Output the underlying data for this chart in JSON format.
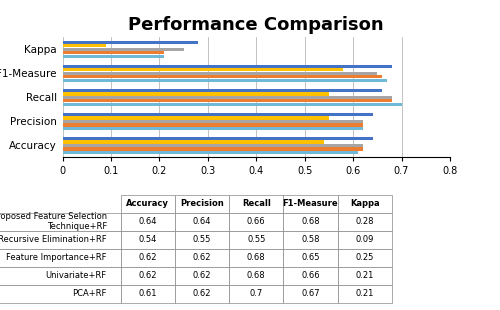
{
  "title": "Performance Comparison",
  "metrics": [
    "Accuracy",
    "Precision",
    "Recall",
    "F1-Measure",
    "Kappa"
  ],
  "methods": [
    "Proposed Feature Selection Technique+RF",
    "Recursive Elimination+RF",
    "Feature Importance+RF",
    "Univariate+RF",
    "PCA+RF"
  ],
  "colors": [
    "#4472C4",
    "#FFC000",
    "#A5A5A5",
    "#ED7D31",
    "#70B8D8"
  ],
  "data": [
    [
      0.64,
      0.64,
      0.66,
      0.68,
      0.28
    ],
    [
      0.54,
      0.55,
      0.55,
      0.58,
      0.09
    ],
    [
      0.62,
      0.62,
      0.68,
      0.65,
      0.25
    ],
    [
      0.62,
      0.62,
      0.68,
      0.66,
      0.21
    ],
    [
      0.61,
      0.62,
      0.7,
      0.67,
      0.21
    ]
  ],
  "xlim": [
    0,
    0.8
  ],
  "xticks": [
    0,
    0.1,
    0.2,
    0.3,
    0.4,
    0.5,
    0.6,
    0.7,
    0.8
  ],
  "bar_height": 0.14,
  "title_fontsize": 13,
  "table_col_labels": [
    "Accuracy",
    "Precision",
    "Recall",
    "F1-Measure",
    "Kappa"
  ],
  "table_row_labels": [
    "Proposed Feature Selection\nTechnique+RF",
    "Recursive Elimination+RF",
    "Feature Importance+RF",
    "Univariate+RF",
    "PCA+RF"
  ],
  "table_data": [
    [
      "0.64",
      "0.64",
      "0.66",
      "0.68",
      "0.28"
    ],
    [
      "0.54",
      "0.55",
      "0.55",
      "0.58",
      "0.09"
    ],
    [
      "0.62",
      "0.62",
      "0.68",
      "0.65",
      "0.25"
    ],
    [
      "0.62",
      "0.62",
      "0.68",
      "0.66",
      "0.21"
    ],
    [
      "0.61",
      "0.62",
      "0.7",
      "0.67",
      "0.21"
    ]
  ]
}
